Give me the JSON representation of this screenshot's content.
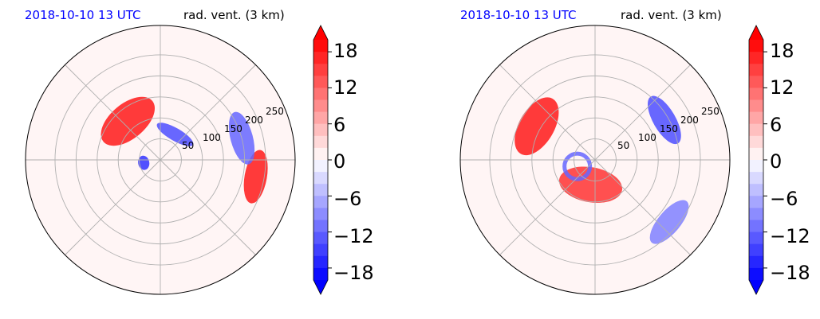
{
  "figure": {
    "panels": [
      {
        "time_label": "2018-10-10 13 UTC",
        "variable_label": "rad. vent. (3 km)",
        "ring_labels": [
          "50",
          "100",
          "150",
          "200",
          "250"
        ],
        "colorbar_ticks": [
          "18",
          "12",
          "6",
          "0",
          "−6",
          "−12",
          "−18"
        ]
      },
      {
        "time_label": "2018-10-10 13 UTC",
        "variable_label": "rad. vent. (3 km)",
        "ring_labels": [
          "50",
          "100",
          "150",
          "200",
          "250"
        ],
        "colorbar_ticks": [
          "18",
          "12",
          "6",
          "0",
          "−6",
          "−12",
          "−18"
        ]
      }
    ],
    "colors": {
      "time_label": "#0000ff",
      "positive": "#ff0000",
      "negative": "#0000ff",
      "neutral": "#fff5f5",
      "grid": "#b0b0b0"
    }
  },
  "chart_data": [
    {
      "type": "heatmap",
      "projection": "polar",
      "title": "2018-10-10 13 UTC",
      "subtitle": "rad. vent. (3 km)",
      "radial_ticks": [
        50,
        100,
        150,
        200,
        250
      ],
      "angular_gridlines_deg": [
        0,
        45,
        90,
        135,
        180,
        225,
        270,
        315
      ],
      "colorbar": {
        "ticks": [
          18,
          12,
          6,
          0,
          -6,
          -12,
          -18
        ],
        "range": [
          -20,
          20
        ],
        "extend": "both"
      },
      "features": [
        {
          "r": 120,
          "theta_deg": 130,
          "value": 18,
          "shape": "spiral arc"
        },
        {
          "r": 230,
          "theta_deg": 350,
          "value": 18,
          "shape": "band"
        },
        {
          "r": 70,
          "theta_deg": 60,
          "value": -14,
          "shape": "arc"
        },
        {
          "r": 200,
          "theta_deg": 15,
          "value": -12,
          "shape": "band"
        },
        {
          "r": 40,
          "theta_deg": 190,
          "value": -16,
          "shape": "spot"
        }
      ]
    },
    {
      "type": "heatmap",
      "projection": "polar",
      "title": "2018-10-10 13 UTC",
      "subtitle": "rad. vent. (3 km)",
      "radial_ticks": [
        50,
        100,
        150,
        200,
        250
      ],
      "angular_gridlines_deg": [
        0,
        45,
        90,
        135,
        180,
        225,
        270,
        315
      ],
      "colorbar": {
        "ticks": [
          18,
          12,
          6,
          0,
          -6,
          -12,
          -18
        ],
        "range": [
          -20,
          20
        ],
        "extend": "both"
      },
      "features": [
        {
          "r": 160,
          "theta_deg": 150,
          "value": 18,
          "shape": "spiral arc"
        },
        {
          "r": 60,
          "theta_deg": 260,
          "value": 16,
          "shape": "spiral arc"
        },
        {
          "r": 190,
          "theta_deg": 30,
          "value": -14,
          "shape": "band"
        },
        {
          "r": 230,
          "theta_deg": 320,
          "value": -10,
          "shape": "band"
        },
        {
          "r": 45,
          "theta_deg": 200,
          "value": -12,
          "shape": "ring"
        }
      ]
    }
  ]
}
